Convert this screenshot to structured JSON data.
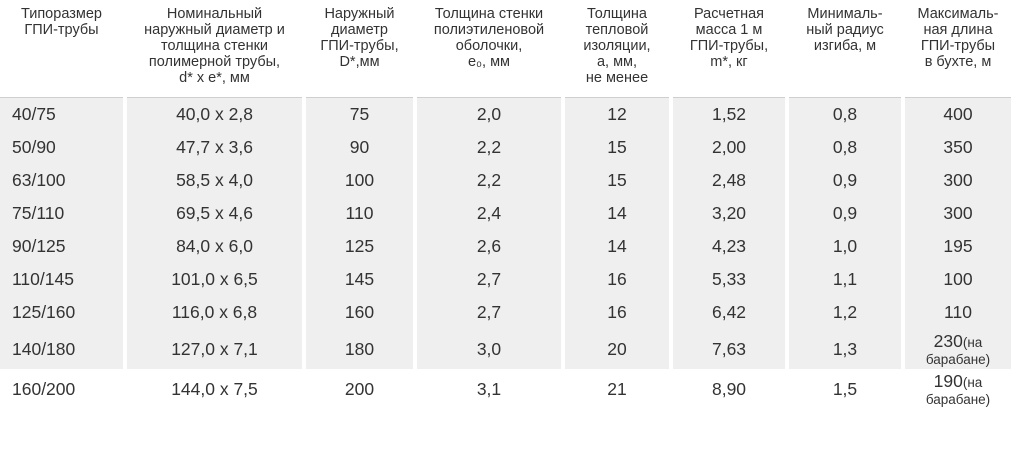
{
  "table": {
    "headers": [
      [
        "Типоразмер",
        "ГПИ-трубы"
      ],
      [
        "Номинальный",
        "наружный диаметр и",
        "толщина стенки",
        "полимерной трубы,",
        "d* x e*, мм"
      ],
      [
        "Наружный",
        "диаметр",
        "ГПИ-трубы,",
        "D*,мм"
      ],
      [
        "Толщина стенки",
        "полиэтиленовой",
        "оболочки,",
        "e₀, мм"
      ],
      [
        "Толщина",
        "тепловой",
        "изоляции,",
        "a, мм,",
        "не менее"
      ],
      [
        "Расчетная",
        "масса 1 м",
        "ГПИ-трубы,",
        "m*, кг"
      ],
      [
        "Минималь-",
        "ный радиус",
        "изгиба, м"
      ],
      [
        "Максималь-",
        "ная длина",
        "ГПИ-трубы",
        "в бухте, м"
      ]
    ],
    "rows": [
      {
        "size": "40/75",
        "dxe": "40,0 x 2,8",
        "D": "75",
        "e0": "2,0",
        "a": "12",
        "mass": "1,52",
        "radius": "0,8",
        "length": "400"
      },
      {
        "size": "50/90",
        "dxe": "47,7 x 3,6",
        "D": "90",
        "e0": "2,2",
        "a": "15",
        "mass": "2,00",
        "radius": "0,8",
        "length": "350"
      },
      {
        "size": "63/100",
        "dxe": "58,5 x 4,0",
        "D": "100",
        "e0": "2,2",
        "a": "15",
        "mass": "2,48",
        "radius": "0,9",
        "length": "300"
      },
      {
        "size": "75/110",
        "dxe": "69,5 x 4,6",
        "D": "110",
        "e0": "2,4",
        "a": "14",
        "mass": "3,20",
        "radius": "0,9",
        "length": "300"
      },
      {
        "size": "90/125",
        "dxe": "84,0 x 6,0",
        "D": "125",
        "e0": "2,6",
        "a": "14",
        "mass": "4,23",
        "radius": "1,0",
        "length": "195"
      },
      {
        "size": "110/145",
        "dxe": "101,0 x 6,5",
        "D": "145",
        "e0": "2,7",
        "a": "16",
        "mass": "5,33",
        "radius": "1,1",
        "length": "100"
      },
      {
        "size": "125/160",
        "dxe": "116,0 x 6,8",
        "D": "160",
        "e0": "2,7",
        "a": "16",
        "mass": "6,42",
        "radius": "1,2",
        "length": "110"
      },
      {
        "size": "140/180",
        "dxe": "127,0 x 7,1",
        "D": "180",
        "e0": "3,0",
        "a": "20",
        "mass": "7,63",
        "radius": "1,3",
        "length": "230",
        "note1": "(на",
        "note2": "барабане)"
      },
      {
        "size": "160/200",
        "dxe": "144,0 x 7,5",
        "D": "200",
        "e0": "3,1",
        "a": "21",
        "mass": "8,90",
        "radius": "1,5",
        "length": "190",
        "note1": "(на",
        "note2": "барабане)"
      }
    ]
  },
  "style": {
    "row_shade_color": "#efefef",
    "text_color": "#333333"
  }
}
